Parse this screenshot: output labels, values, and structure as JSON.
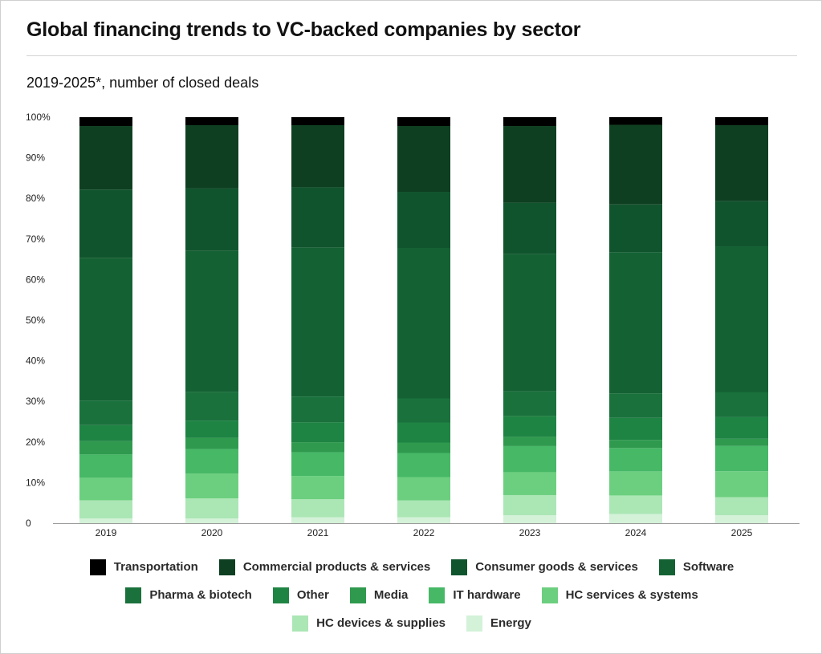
{
  "header": {
    "title": "Global financing trends to VC-backed companies by sector",
    "subtitle": "2019-2025*, number of closed deals"
  },
  "chart_data": {
    "type": "bar",
    "stacked": true,
    "normalized_percent": true,
    "title": "Global financing trends to VC-backed companies by sector",
    "subtitle": "2019-2025*, number of closed deals",
    "categories": [
      "2019",
      "2020",
      "2021",
      "2022",
      "2023",
      "2024",
      "2025"
    ],
    "y_tick_labels": [
      "0",
      "10%",
      "20%",
      "30%",
      "40%",
      "50%",
      "60%",
      "70%",
      "80%",
      "90%",
      "100%"
    ],
    "ylim": [
      0,
      100
    ],
    "grid": false,
    "legend_position": "bottom",
    "series": [
      {
        "name": "Energy",
        "color": "#d3f2d8",
        "values": [
          1.2,
          1.2,
          1.5,
          1.5,
          2.0,
          2.3,
          2.0
        ]
      },
      {
        "name": "HC devices & supplies",
        "color": "#abe6b5",
        "values": [
          4.5,
          5.0,
          4.5,
          4.2,
          5.0,
          4.6,
          4.5
        ]
      },
      {
        "name": "HC services & systems",
        "color": "#6ccf7f",
        "values": [
          5.6,
          6.2,
          5.8,
          5.8,
          5.7,
          6.0,
          6.5
        ]
      },
      {
        "name": "IT hardware",
        "color": "#46b866",
        "values": [
          5.8,
          6.1,
          5.9,
          6.0,
          6.5,
          5.8,
          6.3
        ]
      },
      {
        "name": "Media",
        "color": "#2f9a4e",
        "values": [
          3.3,
          2.8,
          2.5,
          2.6,
          2.3,
          2.0,
          1.8
        ]
      },
      {
        "name": "Other",
        "color": "#1e8443",
        "values": [
          4.0,
          4.3,
          5.0,
          5.0,
          5.2,
          5.5,
          5.4
        ]
      },
      {
        "name": "Pharma & biotech",
        "color": "#1a713c",
        "values": [
          6.1,
          7.1,
          6.4,
          6.0,
          6.1,
          6.1,
          6.2
        ]
      },
      {
        "name": "Software",
        "color": "#146234",
        "values": [
          35.5,
          35.3,
          37.2,
          37.5,
          34.2,
          35.1,
          36.5
        ]
      },
      {
        "name": "Consumer goods & services",
        "color": "#10542d",
        "values": [
          17.0,
          15.5,
          15.0,
          14.0,
          12.8,
          11.9,
          11.3
        ]
      },
      {
        "name": "Commercial products & services",
        "color": "#0e3f21",
        "values": [
          15.8,
          15.8,
          15.5,
          16.4,
          19.1,
          19.8,
          19.0
        ]
      },
      {
        "name": "Transportation",
        "color": "#000000",
        "values": [
          2.2,
          2.0,
          2.0,
          2.2,
          2.2,
          1.9,
          2.0
        ]
      }
    ]
  },
  "legend": {
    "rows": [
      [
        {
          "name": "Transportation",
          "color": "#000000"
        },
        {
          "name": "Commercial products & services",
          "color": "#0e3f21"
        },
        {
          "name": "Consumer goods & services",
          "color": "#10542d"
        },
        {
          "name": "Software",
          "color": "#146234"
        }
      ],
      [
        {
          "name": "Pharma & biotech",
          "color": "#1a713c"
        },
        {
          "name": "Other",
          "color": "#1e8443"
        },
        {
          "name": "Media",
          "color": "#2f9a4e"
        },
        {
          "name": "IT hardware",
          "color": "#46b866"
        },
        {
          "name": "HC services & systems",
          "color": "#6ccf7f"
        }
      ],
      [
        {
          "name": "HC devices & supplies",
          "color": "#abe6b5"
        },
        {
          "name": "Energy",
          "color": "#d3f2d8"
        }
      ]
    ]
  }
}
